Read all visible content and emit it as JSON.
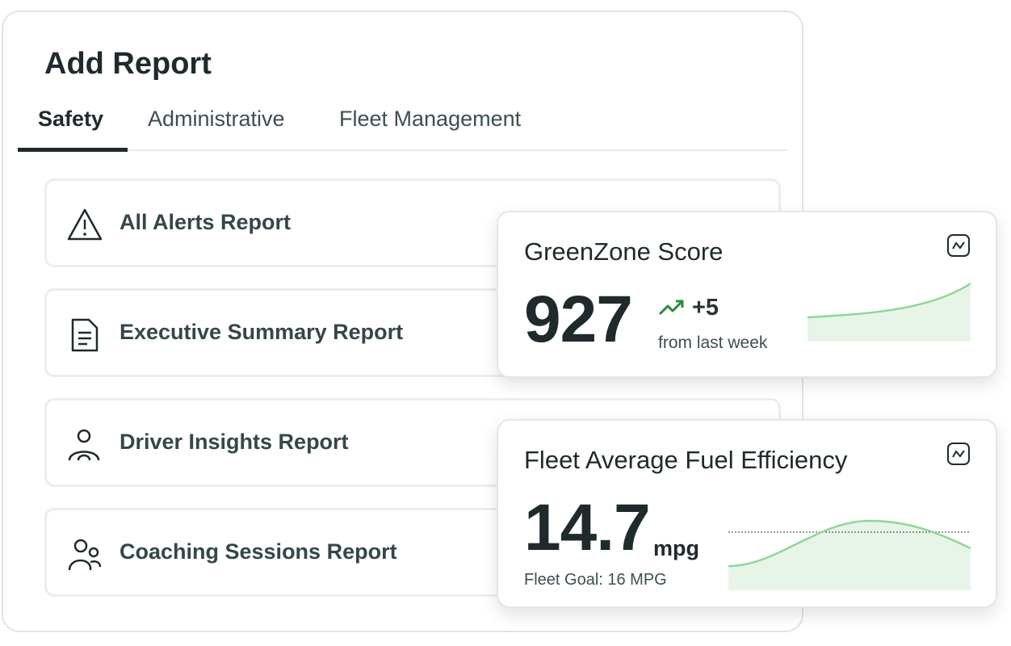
{
  "header": {
    "title": "Add Report"
  },
  "tabs": [
    "Safety",
    "Administrative",
    "Fleet Management"
  ],
  "reports": [
    "All Alerts Report",
    "Executive Summary Report",
    "Driver Insights Report",
    "Coaching Sessions Report"
  ],
  "cards": [
    {
      "title": "GreenZone Score",
      "value": "927",
      "change": "+5",
      "note": "from last week"
    },
    {
      "title": "Fleet Average Fuel Efficiency",
      "value": "14.7",
      "unit": "mpg",
      "note": "Fleet Goal: 16 MPG"
    }
  ]
}
